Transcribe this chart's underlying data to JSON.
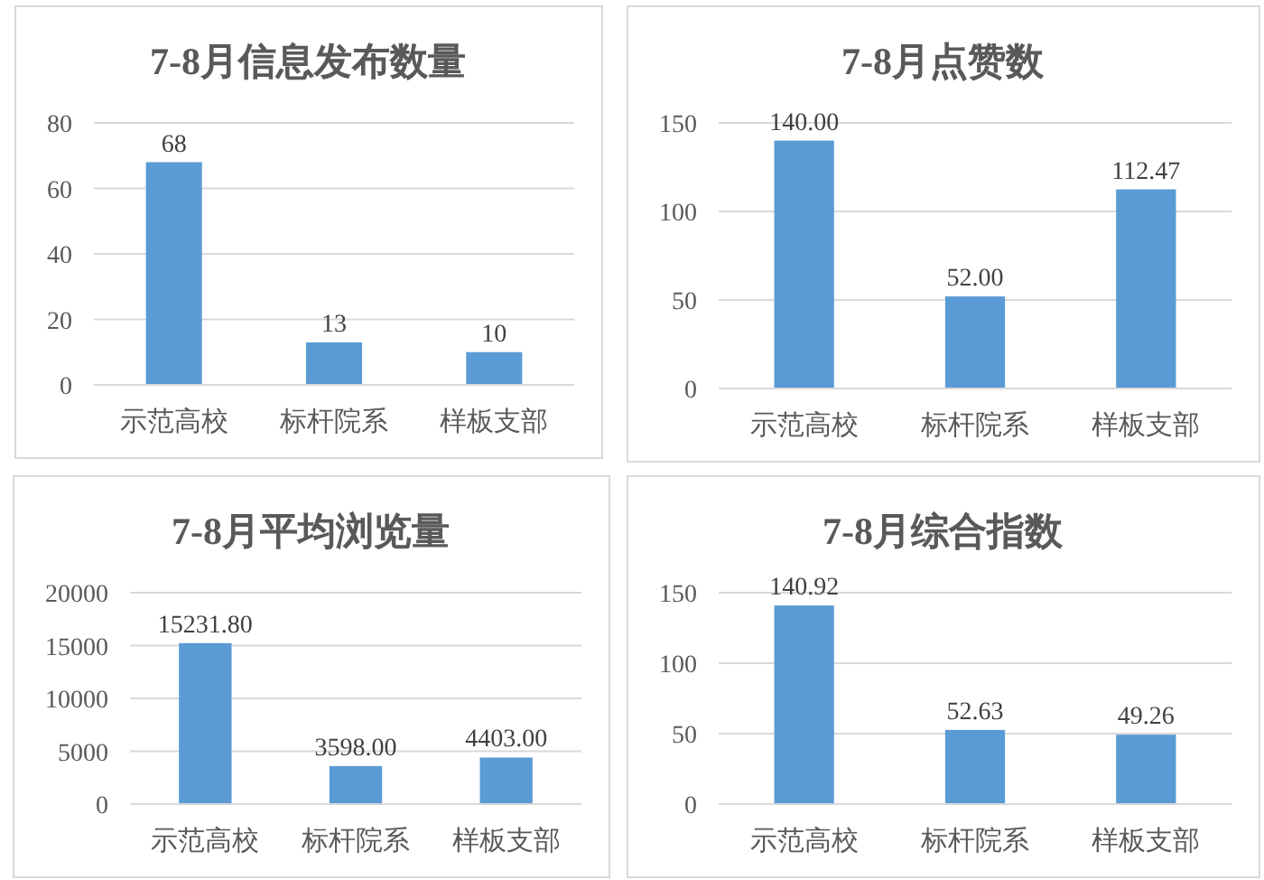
{
  "chart_data": [
    {
      "type": "bar",
      "title": "7-8月信息发布数量",
      "categories": [
        "示范高校",
        "标杆院系",
        "样板支部"
      ],
      "values": [
        68,
        13,
        10
      ],
      "color": "#5b9bd5",
      "ylim": [
        0,
        80
      ],
      "yticks": [
        0,
        20,
        40,
        60,
        80
      ],
      "grid": "y",
      "data_labels": true
    },
    {
      "type": "bar",
      "title": "7-8月点赞数",
      "categories": [
        "示范高校",
        "标杆院系",
        "样板支部"
      ],
      "values": [
        140.0,
        52.0,
        112.47
      ],
      "value_labels": [
        "140.00",
        "52.00",
        "112.47"
      ],
      "color": "#5b9bd5",
      "ylim": [
        0,
        150
      ],
      "yticks": [
        0,
        50,
        100,
        150
      ],
      "grid": "y"
    },
    {
      "type": "bar",
      "title": "7-8月平均浏览量",
      "categories": [
        "示范高校",
        "标杆院系",
        "样板支部"
      ],
      "values": [
        15231.8,
        3598.0,
        4403.0
      ],
      "value_labels": [
        "15231.80",
        "3598.00",
        "4403.00"
      ],
      "color": "#5b9bd5",
      "ylim": [
        0,
        20000
      ],
      "yticks": [
        0,
        5000,
        10000,
        15000,
        20000
      ],
      "grid": "y"
    },
    {
      "type": "bar",
      "title": "7-8月综合指数",
      "categories": [
        "示范高校",
        "标杆院系",
        "样板支部"
      ],
      "values": [
        140.92,
        52.63,
        49.26
      ],
      "value_labels": [
        "140.92",
        "52.63",
        "49.26"
      ],
      "color": "#5b9bd5",
      "ylim": [
        0,
        150
      ],
      "yticks": [
        0,
        50,
        100,
        150
      ],
      "grid": "y"
    }
  ]
}
